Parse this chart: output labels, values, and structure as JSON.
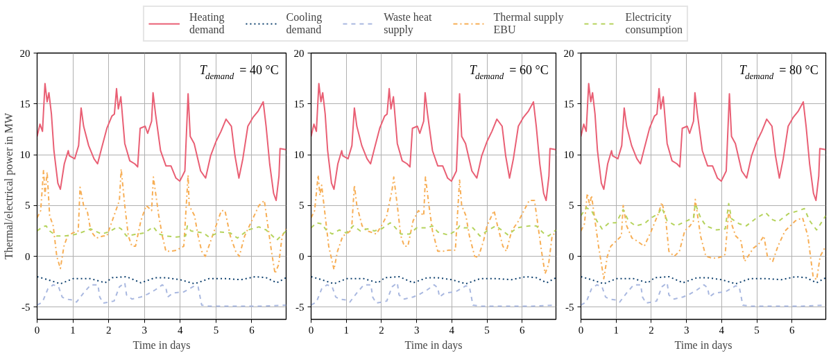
{
  "chart_data": [
    {
      "type": "line",
      "xlabel": "Time in days",
      "ylabel": "Thermal/electrical power in MW",
      "xlim": [
        0,
        6.96
      ],
      "ylim": [
        -6.2,
        20
      ],
      "xticks": [
        0,
        1,
        2,
        3,
        4,
        5,
        6
      ],
      "yticks": [
        -5,
        0,
        5,
        10,
        15,
        20
      ],
      "grid": true,
      "legend": "top",
      "annotations": [
        "T$_{demand}$ = 40 °C"
      ],
      "series": [
        {
          "name": "Heating demand",
          "color": "#e95f74",
          "line_style": "solid",
          "x": [
            0,
            0.08,
            0.15,
            0.22,
            0.28,
            0.33,
            0.4,
            0.47,
            0.58,
            0.65,
            0.76,
            0.87,
            0.9,
            1.05,
            1.16,
            1.23,
            1.3,
            1.44,
            1.59,
            1.69,
            1.8,
            1.95,
            2.09,
            2.16,
            2.22,
            2.27,
            2.34,
            2.45,
            2.59,
            2.73,
            2.81,
            2.88,
            3.02,
            3.09,
            3.2,
            3.24,
            3.31,
            3.45,
            3.6,
            3.74,
            3.88,
            3.99,
            4.13,
            4.22,
            4.28,
            4.39,
            4.57,
            4.71,
            4.85,
            5.0,
            5.14,
            5.28,
            5.43,
            5.53,
            5.64,
            5.75,
            5.89,
            6.04,
            6.18,
            6.32,
            6.4,
            6.5,
            6.61,
            6.68,
            6.76,
            6.79,
            6.96
          ],
          "values": [
            11.8,
            13.0,
            12.3,
            17.0,
            15.2,
            16.1,
            14.0,
            10.4,
            7.2,
            6.6,
            9.1,
            10.4,
            9.9,
            9.6,
            10.9,
            14.6,
            12.8,
            10.9,
            9.6,
            9.1,
            10.6,
            12.6,
            13.8,
            14.0,
            16.5,
            14.5,
            15.7,
            11.1,
            9.4,
            9.1,
            8.8,
            12.6,
            12.8,
            12.1,
            13.3,
            16.1,
            14.0,
            10.4,
            8.9,
            8.9,
            7.7,
            7.4,
            8.4,
            16.0,
            11.8,
            11.1,
            8.4,
            7.7,
            9.9,
            11.3,
            12.3,
            13.5,
            12.8,
            9.9,
            7.7,
            9.6,
            12.8,
            13.7,
            14.3,
            15.2,
            12.8,
            9.1,
            6.2,
            5.5,
            7.9,
            10.6,
            10.5
          ]
        },
        {
          "name": "Cooling demand",
          "color": "#0b3e6c",
          "line_style": "dotted",
          "x": [
            0,
            0.3,
            0.65,
            1.0,
            1.5,
            1.9,
            2.1,
            2.5,
            2.9,
            3.3,
            3.6,
            4.0,
            4.4,
            4.8,
            5.3,
            5.7,
            6.1,
            6.4,
            6.7,
            6.96
          ],
          "values": [
            -2.0,
            -2.3,
            -2.7,
            -2.2,
            -2.2,
            -2.6,
            -2.1,
            -2.0,
            -2.6,
            -2.1,
            -2.1,
            -2.3,
            -2.7,
            -2.2,
            -2.2,
            -2.3,
            -2.0,
            -2.1,
            -2.6,
            -2.1
          ]
        },
        {
          "name": "Waste heat supply",
          "color": "#a9b8e0",
          "line_style": "dashed",
          "x": [
            0,
            0.15,
            0.3,
            0.45,
            0.6,
            0.7,
            0.8,
            1.0,
            1.1,
            1.3,
            1.5,
            1.7,
            1.75,
            1.85,
            2.0,
            2.15,
            2.3,
            2.45,
            2.5,
            2.65,
            2.9,
            3.1,
            3.3,
            3.5,
            3.6,
            3.65,
            3.8,
            4.1,
            4.4,
            4.5,
            4.6,
            4.8,
            5.5,
            6.3,
            6.96
          ],
          "values": [
            -4.8,
            -4.5,
            -3.2,
            -2.8,
            -3.0,
            -4.0,
            -4.2,
            -4.3,
            -4.5,
            -3.6,
            -2.8,
            -2.8,
            -4.0,
            -4.6,
            -4.5,
            -4.4,
            -3.0,
            -2.6,
            -3.8,
            -4.2,
            -4.0,
            -3.7,
            -3.3,
            -2.8,
            -3.1,
            -4.0,
            -3.6,
            -3.5,
            -2.9,
            -3.0,
            -4.8,
            -4.9,
            -4.9,
            -4.9,
            -4.8
          ]
        },
        {
          "name": "Thermal supply EBU",
          "color": "#f7ae55",
          "line_style": "dashdot",
          "x": [
            0,
            0.1,
            0.18,
            0.22,
            0.28,
            0.35,
            0.45,
            0.55,
            0.65,
            0.75,
            0.85,
            1.0,
            1.15,
            1.2,
            1.3,
            1.4,
            1.5,
            1.65,
            1.85,
            1.95,
            2.05,
            2.15,
            2.3,
            2.35,
            2.45,
            2.55,
            2.65,
            2.75,
            2.9,
            3.05,
            3.2,
            3.25,
            3.4,
            3.5,
            3.6,
            3.75,
            3.9,
            4.1,
            4.22,
            4.25,
            4.4,
            4.5,
            4.6,
            4.7,
            4.85,
            5.0,
            5.15,
            5.25,
            5.4,
            5.55,
            5.65,
            5.8,
            6.0,
            6.2,
            6.35,
            6.45,
            6.55,
            6.65,
            6.75,
            6.85,
            6.96
          ],
          "values": [
            3.8,
            4.5,
            8.5,
            6.0,
            8.3,
            4.0,
            3.0,
            0.0,
            -1.2,
            1.0,
            2.0,
            2.3,
            2.5,
            6.8,
            5.0,
            4.5,
            2.5,
            1.8,
            2.0,
            2.0,
            3.0,
            4.0,
            5.5,
            8.6,
            5.0,
            2.0,
            1.0,
            1.0,
            3.5,
            5.0,
            4.5,
            7.8,
            4.0,
            2.0,
            0.5,
            0.5,
            0.6,
            1.0,
            8.0,
            5.0,
            4.0,
            2.0,
            0.5,
            0.0,
            1.5,
            3.0,
            4.5,
            4.5,
            2.0,
            0.5,
            0.0,
            2.0,
            3.5,
            5.0,
            5.5,
            3.0,
            0.5,
            -1.7,
            -0.8,
            2.0,
            2.7
          ]
        },
        {
          "name": "Electricity consumption",
          "color": "#b5d35d",
          "line_style": "dashed",
          "x": [
            0,
            0.15,
            0.25,
            0.35,
            0.55,
            0.75,
            1.0,
            1.2,
            1.5,
            1.8,
            2.0,
            2.25,
            2.35,
            2.5,
            2.8,
            3.0,
            3.25,
            3.4,
            3.6,
            3.9,
            4.15,
            4.2,
            4.3,
            4.65,
            4.8,
            5.1,
            5.4,
            5.6,
            5.9,
            6.2,
            6.4,
            6.7,
            6.96
          ],
          "values": [
            2.5,
            2.9,
            3.0,
            2.5,
            2.0,
            2.0,
            2.1,
            2.3,
            2.7,
            2.2,
            2.4,
            2.9,
            2.7,
            2.0,
            2.2,
            2.3,
            2.9,
            2.2,
            2.0,
            1.9,
            2.0,
            3.0,
            2.5,
            2.3,
            1.9,
            2.4,
            2.3,
            1.8,
            2.6,
            2.9,
            2.6,
            1.6,
            2.5
          ]
        }
      ]
    },
    {
      "type": "line",
      "xlabel": "Time in days",
      "xlim": [
        0,
        6.96
      ],
      "ylim": [
        -6.2,
        20
      ],
      "xticks": [
        0,
        1,
        2,
        3,
        4,
        5,
        6
      ],
      "yticks": [
        -5,
        0,
        5,
        10,
        15,
        20
      ],
      "grid": true,
      "annotations": [
        "T$_{demand}$ = 60 °C"
      ],
      "series": [
        {
          "color": "#e95f74",
          "line_style": "solid",
          "x": [
            0,
            0.08,
            0.15,
            0.22,
            0.28,
            0.33,
            0.4,
            0.47,
            0.58,
            0.65,
            0.76,
            0.87,
            0.9,
            1.05,
            1.16,
            1.23,
            1.3,
            1.44,
            1.59,
            1.69,
            1.8,
            1.95,
            2.09,
            2.16,
            2.22,
            2.27,
            2.34,
            2.45,
            2.59,
            2.73,
            2.81,
            2.88,
            3.02,
            3.09,
            3.2,
            3.24,
            3.31,
            3.45,
            3.6,
            3.74,
            3.88,
            3.99,
            4.13,
            4.22,
            4.28,
            4.39,
            4.57,
            4.71,
            4.85,
            5.0,
            5.14,
            5.28,
            5.43,
            5.53,
            5.64,
            5.75,
            5.89,
            6.04,
            6.18,
            6.32,
            6.4,
            6.5,
            6.61,
            6.68,
            6.76,
            6.79,
            6.96
          ],
          "values": [
            11.8,
            13.0,
            12.3,
            17.0,
            15.2,
            16.1,
            14.0,
            10.4,
            7.2,
            6.6,
            9.1,
            10.4,
            9.9,
            9.6,
            10.9,
            14.6,
            12.8,
            10.9,
            9.6,
            9.1,
            10.6,
            12.6,
            13.8,
            14.0,
            16.5,
            14.5,
            15.7,
            11.1,
            9.4,
            9.1,
            8.8,
            12.6,
            12.8,
            12.1,
            13.3,
            16.1,
            14.0,
            10.4,
            8.9,
            8.9,
            7.7,
            7.4,
            8.4,
            16.0,
            11.8,
            11.1,
            8.4,
            7.7,
            9.9,
            11.3,
            12.3,
            13.5,
            12.8,
            9.9,
            7.7,
            9.6,
            12.8,
            13.7,
            14.3,
            15.2,
            12.8,
            9.1,
            6.2,
            5.5,
            7.9,
            10.6,
            10.5
          ]
        },
        {
          "color": "#0b3e6c",
          "line_style": "dotted",
          "x": [
            0,
            0.3,
            0.65,
            1.0,
            1.5,
            1.9,
            2.1,
            2.5,
            2.9,
            3.3,
            3.6,
            4.0,
            4.4,
            4.8,
            5.3,
            5.7,
            6.1,
            6.4,
            6.7,
            6.96
          ],
          "values": [
            -2.0,
            -2.3,
            -2.7,
            -2.2,
            -2.2,
            -2.6,
            -2.1,
            -2.0,
            -2.6,
            -2.1,
            -2.1,
            -2.3,
            -2.7,
            -2.2,
            -2.2,
            -2.3,
            -2.0,
            -2.1,
            -2.6,
            -2.1
          ]
        },
        {
          "color": "#a9b8e0",
          "line_style": "dashed",
          "x": [
            0,
            0.15,
            0.3,
            0.45,
            0.6,
            0.7,
            0.8,
            1.0,
            1.1,
            1.3,
            1.5,
            1.7,
            1.75,
            1.85,
            2.0,
            2.15,
            2.3,
            2.45,
            2.5,
            2.65,
            2.9,
            3.1,
            3.3,
            3.5,
            3.6,
            3.65,
            3.8,
            4.1,
            4.4,
            4.5,
            4.6,
            4.8,
            5.5,
            6.3,
            6.96
          ],
          "values": [
            -4.8,
            -4.5,
            -3.2,
            -2.8,
            -3.0,
            -4.0,
            -4.2,
            -4.3,
            -4.5,
            -3.6,
            -2.8,
            -2.8,
            -4.0,
            -4.6,
            -4.5,
            -4.4,
            -3.0,
            -2.6,
            -3.8,
            -4.2,
            -4.0,
            -3.7,
            -3.3,
            -2.8,
            -3.1,
            -4.0,
            -3.6,
            -3.5,
            -2.9,
            -3.0,
            -4.8,
            -4.9,
            -4.9,
            -4.9,
            -4.8
          ]
        },
        {
          "color": "#f7ae55",
          "line_style": "dashdot",
          "x": [
            0,
            0.1,
            0.2,
            0.25,
            0.3,
            0.4,
            0.5,
            0.65,
            0.75,
            0.9,
            1.0,
            1.15,
            1.23,
            1.3,
            1.45,
            1.6,
            1.85,
            2.0,
            2.15,
            2.3,
            2.35,
            2.45,
            2.55,
            2.65,
            2.75,
            2.9,
            3.05,
            3.2,
            3.25,
            3.35,
            3.45,
            3.6,
            3.75,
            3.9,
            4.1,
            4.22,
            4.28,
            4.4,
            4.5,
            4.65,
            4.75,
            4.9,
            5.0,
            5.2,
            5.3,
            5.45,
            5.55,
            5.7,
            5.9,
            6.2,
            6.35,
            6.45,
            6.55,
            6.65,
            6.75,
            6.85,
            6.96
          ],
          "values": [
            3.8,
            4.5,
            8.0,
            6.0,
            7.0,
            4.0,
            1.0,
            -1.3,
            0.5,
            2.0,
            2.2,
            2.6,
            7.0,
            5.0,
            3.0,
            2.5,
            2.2,
            3.0,
            4.0,
            6.5,
            7.8,
            5.0,
            2.0,
            1.0,
            1.0,
            3.5,
            4.5,
            4.0,
            7.8,
            5.0,
            2.5,
            0.5,
            0.5,
            0.6,
            0.6,
            7.5,
            5.0,
            4.0,
            2.0,
            0.0,
            -0.1,
            1.5,
            3.0,
            4.5,
            3.0,
            1.0,
            0.5,
            2.5,
            3.5,
            5.5,
            5.5,
            3.0,
            0.5,
            -1.7,
            -0.8,
            2.0,
            2.4
          ]
        },
        {
          "color": "#b5d35d",
          "line_style": "dashed",
          "x": [
            0,
            0.15,
            0.3,
            0.45,
            0.6,
            0.8,
            1.0,
            1.2,
            1.4,
            1.6,
            1.8,
            2.0,
            2.25,
            2.35,
            2.55,
            2.8,
            3.0,
            3.3,
            3.45,
            3.6,
            3.9,
            4.15,
            4.22,
            4.35,
            4.6,
            4.8,
            5.0,
            5.25,
            5.45,
            5.6,
            5.85,
            6.2,
            6.4,
            6.6,
            6.75,
            6.96
          ],
          "values": [
            2.8,
            3.3,
            3.2,
            2.5,
            2.2,
            2.6,
            2.3,
            3.0,
            2.5,
            2.7,
            2.5,
            2.7,
            3.3,
            3.0,
            2.2,
            2.2,
            2.8,
            2.8,
            3.0,
            2.4,
            2.1,
            2.6,
            3.0,
            2.8,
            2.8,
            2.0,
            2.5,
            3.0,
            2.5,
            2.1,
            2.8,
            3.0,
            3.0,
            2.3,
            2.0,
            2.6
          ]
        }
      ]
    },
    {
      "type": "line",
      "xlabel": "Time in days",
      "xlim": [
        0,
        6.96
      ],
      "ylim": [
        -6.2,
        20
      ],
      "xticks": [
        0,
        1,
        2,
        3,
        4,
        5,
        6
      ],
      "yticks": [
        -5,
        0,
        5,
        10,
        15,
        20
      ],
      "grid": true,
      "annotations": [
        "T$_{demand}$ = 80 °C"
      ],
      "series": [
        {
          "color": "#e95f74",
          "line_style": "solid",
          "x": [
            0,
            0.08,
            0.15,
            0.22,
            0.28,
            0.33,
            0.4,
            0.47,
            0.58,
            0.65,
            0.76,
            0.87,
            0.9,
            1.05,
            1.16,
            1.23,
            1.3,
            1.44,
            1.59,
            1.69,
            1.8,
            1.95,
            2.09,
            2.16,
            2.22,
            2.27,
            2.34,
            2.45,
            2.59,
            2.73,
            2.81,
            2.88,
            3.02,
            3.09,
            3.2,
            3.24,
            3.31,
            3.45,
            3.6,
            3.74,
            3.88,
            3.99,
            4.13,
            4.22,
            4.28,
            4.39,
            4.57,
            4.71,
            4.85,
            5.0,
            5.14,
            5.28,
            5.43,
            5.53,
            5.64,
            5.75,
            5.89,
            6.04,
            6.18,
            6.32,
            6.4,
            6.5,
            6.61,
            6.68,
            6.76,
            6.79,
            6.96
          ],
          "values": [
            11.8,
            13.0,
            12.3,
            17.0,
            15.2,
            16.1,
            14.0,
            10.4,
            7.2,
            6.6,
            9.1,
            10.4,
            9.9,
            9.6,
            10.9,
            14.6,
            12.8,
            10.9,
            9.6,
            9.1,
            10.6,
            12.6,
            13.8,
            14.0,
            16.5,
            14.5,
            15.7,
            11.1,
            9.4,
            9.1,
            8.8,
            12.6,
            12.8,
            12.1,
            13.3,
            16.1,
            14.0,
            10.4,
            8.9,
            8.9,
            7.7,
            7.4,
            8.4,
            16.0,
            11.8,
            11.1,
            8.4,
            7.7,
            9.9,
            11.3,
            12.3,
            13.5,
            12.8,
            9.9,
            7.7,
            9.6,
            12.8,
            13.7,
            14.3,
            15.2,
            12.8,
            9.1,
            6.2,
            5.5,
            7.9,
            10.6,
            10.5
          ]
        },
        {
          "color": "#0b3e6c",
          "line_style": "dotted",
          "x": [
            0,
            0.3,
            0.65,
            1.0,
            1.5,
            1.9,
            2.1,
            2.5,
            2.9,
            3.3,
            3.6,
            4.0,
            4.4,
            4.8,
            5.3,
            5.7,
            6.1,
            6.4,
            6.7,
            6.96
          ],
          "values": [
            -2.0,
            -2.3,
            -2.7,
            -2.2,
            -2.2,
            -2.6,
            -2.1,
            -2.0,
            -2.6,
            -2.1,
            -2.1,
            -2.3,
            -2.7,
            -2.2,
            -2.2,
            -2.3,
            -2.0,
            -2.1,
            -2.6,
            -2.1
          ]
        },
        {
          "color": "#a9b8e0",
          "line_style": "dashed",
          "x": [
            0,
            0.15,
            0.3,
            0.45,
            0.6,
            0.7,
            0.8,
            1.0,
            1.1,
            1.3,
            1.5,
            1.7,
            1.75,
            1.85,
            2.0,
            2.15,
            2.3,
            2.45,
            2.5,
            2.65,
            2.9,
            3.1,
            3.3,
            3.5,
            3.6,
            3.65,
            3.8,
            4.1,
            4.4,
            4.5,
            4.6,
            4.8,
            5.5,
            6.3,
            6.96
          ],
          "values": [
            -4.8,
            -4.5,
            -3.2,
            -2.8,
            -3.0,
            -4.0,
            -4.2,
            -4.3,
            -4.5,
            -3.6,
            -2.8,
            -2.8,
            -4.0,
            -4.6,
            -4.5,
            -4.4,
            -3.0,
            -2.6,
            -3.8,
            -4.2,
            -4.0,
            -3.7,
            -3.3,
            -2.8,
            -3.1,
            -4.0,
            -3.6,
            -3.5,
            -2.9,
            -3.0,
            -4.8,
            -4.9,
            -4.9,
            -4.9,
            -4.8
          ]
        },
        {
          "color": "#f7ae55",
          "line_style": "dashdot",
          "x": [
            0,
            0.1,
            0.18,
            0.25,
            0.3,
            0.4,
            0.5,
            0.65,
            0.75,
            0.85,
            1.0,
            1.15,
            1.2,
            1.3,
            1.45,
            1.6,
            1.8,
            2.0,
            2.2,
            2.3,
            2.4,
            2.5,
            2.65,
            2.8,
            2.95,
            3.1,
            3.2,
            3.25,
            3.4,
            3.55,
            3.75,
            3.95,
            4.1,
            4.2,
            4.3,
            4.4,
            4.55,
            4.65,
            4.75,
            4.9,
            5.05,
            5.2,
            5.3,
            5.45,
            5.6,
            5.8,
            6.1,
            6.3,
            6.45,
            6.6,
            6.7,
            6.8,
            6.96
          ],
          "values": [
            2.5,
            3.2,
            6.2,
            5.0,
            6.0,
            3.5,
            1.0,
            -2.2,
            0.0,
            1.0,
            1.5,
            2.0,
            5.0,
            3.0,
            1.8,
            1.5,
            1.0,
            2.5,
            4.2,
            5.3,
            4.0,
            0.5,
            0.0,
            0.5,
            2.5,
            3.0,
            3.5,
            5.6,
            2.0,
            0.0,
            -0.2,
            -0.1,
            0.2,
            4.5,
            3.0,
            2.0,
            1.5,
            -0.5,
            0.0,
            0.8,
            1.2,
            2.0,
            0.0,
            -0.5,
            1.0,
            2.5,
            3.5,
            3.8,
            2.0,
            -2.0,
            -2.3,
            0.0,
            1.0
          ]
        },
        {
          "color": "#b5d35d",
          "line_style": "dashed",
          "x": [
            0,
            0.15,
            0.3,
            0.45,
            0.6,
            0.8,
            1.0,
            1.2,
            1.35,
            1.55,
            1.8,
            2.0,
            2.2,
            2.3,
            2.45,
            2.7,
            2.95,
            3.2,
            3.25,
            3.4,
            3.55,
            3.85,
            4.1,
            4.2,
            4.28,
            4.5,
            4.7,
            5.0,
            5.25,
            5.45,
            5.6,
            5.9,
            6.2,
            6.35,
            6.5,
            6.7,
            6.96
          ],
          "values": [
            4.0,
            4.8,
            4.5,
            3.5,
            2.7,
            3.3,
            3.3,
            4.6,
            3.5,
            3.0,
            3.2,
            3.8,
            4.2,
            4.8,
            3.5,
            3.0,
            3.4,
            3.8,
            5.2,
            3.8,
            3.0,
            2.6,
            2.7,
            5.2,
            3.7,
            3.2,
            3.0,
            3.8,
            4.3,
            3.6,
            3.4,
            4.2,
            4.5,
            4.7,
            3.5,
            2.6,
            4.0
          ]
        }
      ]
    }
  ]
}
